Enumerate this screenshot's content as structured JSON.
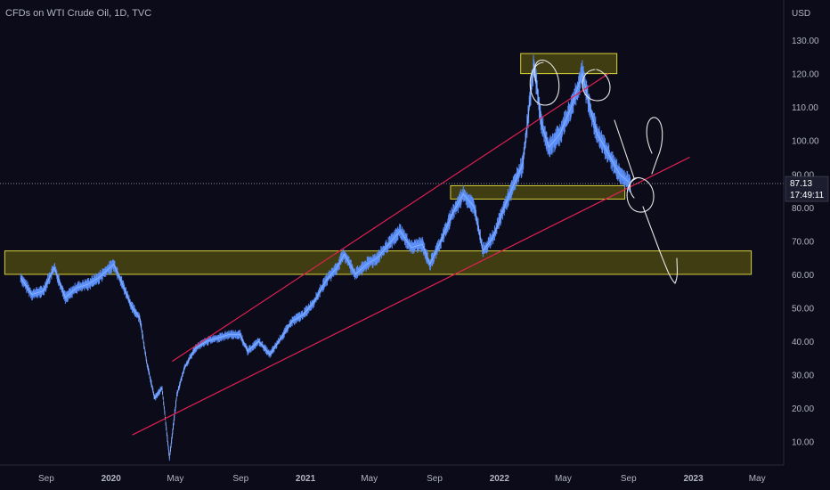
{
  "chart_title": "CFDs on WTI Crude Oil, 1D, TVC",
  "chart_data": {
    "type": "line",
    "title": "CFDs on WTI Crude Oil, 1D, TVC",
    "ylabel": "USD",
    "ylim": [
      3,
      142
    ],
    "y_ticks": [
      "10.00",
      "20.00",
      "30.00",
      "40.00",
      "50.00",
      "60.00",
      "70.00",
      "80.00",
      "90.00",
      "100.00",
      "110.00",
      "120.00",
      "130.00"
    ],
    "x_ticks": [
      {
        "label": "Sep",
        "bold": false
      },
      {
        "label": "2020",
        "bold": true
      },
      {
        "label": "May",
        "bold": false
      },
      {
        "label": "Sep",
        "bold": false
      },
      {
        "label": "2021",
        "bold": true
      },
      {
        "label": "May",
        "bold": false
      },
      {
        "label": "Sep",
        "bold": false
      },
      {
        "label": "2022",
        "bold": true
      },
      {
        "label": "May",
        "bold": false
      },
      {
        "label": "Sep",
        "bold": false
      },
      {
        "label": "2023",
        "bold": true
      },
      {
        "label": "May",
        "bold": false
      }
    ],
    "series": [
      {
        "values": [
          {
            "x": "2019-07-15",
            "y": 59
          },
          {
            "x": "2019-08-05",
            "y": 54
          },
          {
            "x": "2019-08-26",
            "y": 55
          },
          {
            "x": "2019-09-16",
            "y": 62
          },
          {
            "x": "2019-10-07",
            "y": 53
          },
          {
            "x": "2019-10-28",
            "y": 56
          },
          {
            "x": "2019-11-18",
            "y": 57
          },
          {
            "x": "2019-12-09",
            "y": 59
          },
          {
            "x": "2020-01-06",
            "y": 63
          },
          {
            "x": "2020-01-20",
            "y": 58
          },
          {
            "x": "2020-02-10",
            "y": 50
          },
          {
            "x": "2020-02-24",
            "y": 47
          },
          {
            "x": "2020-03-09",
            "y": 33
          },
          {
            "x": "2020-03-23",
            "y": 23
          },
          {
            "x": "2020-04-06",
            "y": 26
          },
          {
            "x": "2020-04-20",
            "y": 5
          },
          {
            "x": "2020-05-04",
            "y": 24
          },
          {
            "x": "2020-05-18",
            "y": 32
          },
          {
            "x": "2020-06-08",
            "y": 38
          },
          {
            "x": "2020-06-29",
            "y": 40
          },
          {
            "x": "2020-07-20",
            "y": 41
          },
          {
            "x": "2020-08-10",
            "y": 42
          },
          {
            "x": "2020-08-31",
            "y": 42
          },
          {
            "x": "2020-09-14",
            "y": 37
          },
          {
            "x": "2020-10-05",
            "y": 40
          },
          {
            "x": "2020-10-26",
            "y": 36
          },
          {
            "x": "2020-11-16",
            "y": 41
          },
          {
            "x": "2020-12-07",
            "y": 46
          },
          {
            "x": "2020-12-28",
            "y": 48
          },
          {
            "x": "2021-01-18",
            "y": 52
          },
          {
            "x": "2021-02-08",
            "y": 58
          },
          {
            "x": "2021-03-01",
            "y": 62
          },
          {
            "x": "2021-03-15",
            "y": 66
          },
          {
            "x": "2021-04-05",
            "y": 60
          },
          {
            "x": "2021-04-26",
            "y": 63
          },
          {
            "x": "2021-05-17",
            "y": 65
          },
          {
            "x": "2021-06-07",
            "y": 69
          },
          {
            "x": "2021-06-28",
            "y": 73
          },
          {
            "x": "2021-07-19",
            "y": 68
          },
          {
            "x": "2021-08-09",
            "y": 69
          },
          {
            "x": "2021-08-23",
            "y": 63
          },
          {
            "x": "2021-09-13",
            "y": 70
          },
          {
            "x": "2021-10-04",
            "y": 78
          },
          {
            "x": "2021-10-25",
            "y": 84
          },
          {
            "x": "2021-11-15",
            "y": 80
          },
          {
            "x": "2021-12-01",
            "y": 67
          },
          {
            "x": "2021-12-20",
            "y": 71
          },
          {
            "x": "2022-01-10",
            "y": 80
          },
          {
            "x": "2022-01-31",
            "y": 88
          },
          {
            "x": "2022-02-14",
            "y": 93
          },
          {
            "x": "2022-03-07",
            "y": 123
          },
          {
            "x": "2022-03-21",
            "y": 105
          },
          {
            "x": "2022-04-04",
            "y": 98
          },
          {
            "x": "2022-04-25",
            "y": 102
          },
          {
            "x": "2022-05-16",
            "y": 110
          },
          {
            "x": "2022-06-06",
            "y": 120
          },
          {
            "x": "2022-06-20",
            "y": 110
          },
          {
            "x": "2022-07-04",
            "y": 102
          },
          {
            "x": "2022-07-25",
            "y": 96
          },
          {
            "x": "2022-08-15",
            "y": 90
          },
          {
            "x": "2022-09-05",
            "y": 87.13
          }
        ]
      }
    ],
    "last_value": "87.13",
    "countdown": "17:49:11",
    "annotations": {
      "zones": [
        {
          "name": "top-resistance",
          "y": [
            120,
            126
          ],
          "x": [
            "2022-02-10",
            "2022-08-10"
          ]
        },
        {
          "name": "mid-support",
          "y": [
            82.5,
            86.5
          ],
          "x": [
            "2021-10-01",
            "2022-08-25"
          ]
        },
        {
          "name": "lower-support",
          "y": [
            60,
            67
          ],
          "x": [
            "2019-06-15",
            "2023-04-20"
          ]
        }
      ],
      "channel_lines": [
        {
          "name": "channel-upper",
          "from": {
            "x": "2020-04-25",
            "y": 34
          },
          "to": {
            "x": "2022-07-25",
            "y": 120
          }
        },
        {
          "name": "channel-lower",
          "from": {
            "x": "2020-02-10",
            "y": 12
          },
          "to": {
            "x": "2022-12-25",
            "y": 95
          }
        }
      ]
    },
    "colors": {
      "background": "#0b0b1a",
      "candles": "#5b8ff9",
      "channel": "#e0214f",
      "zone_fill": "#4a4613",
      "zone_stroke": "#d8d03a",
      "drawing": "#e8e8e8"
    }
  }
}
